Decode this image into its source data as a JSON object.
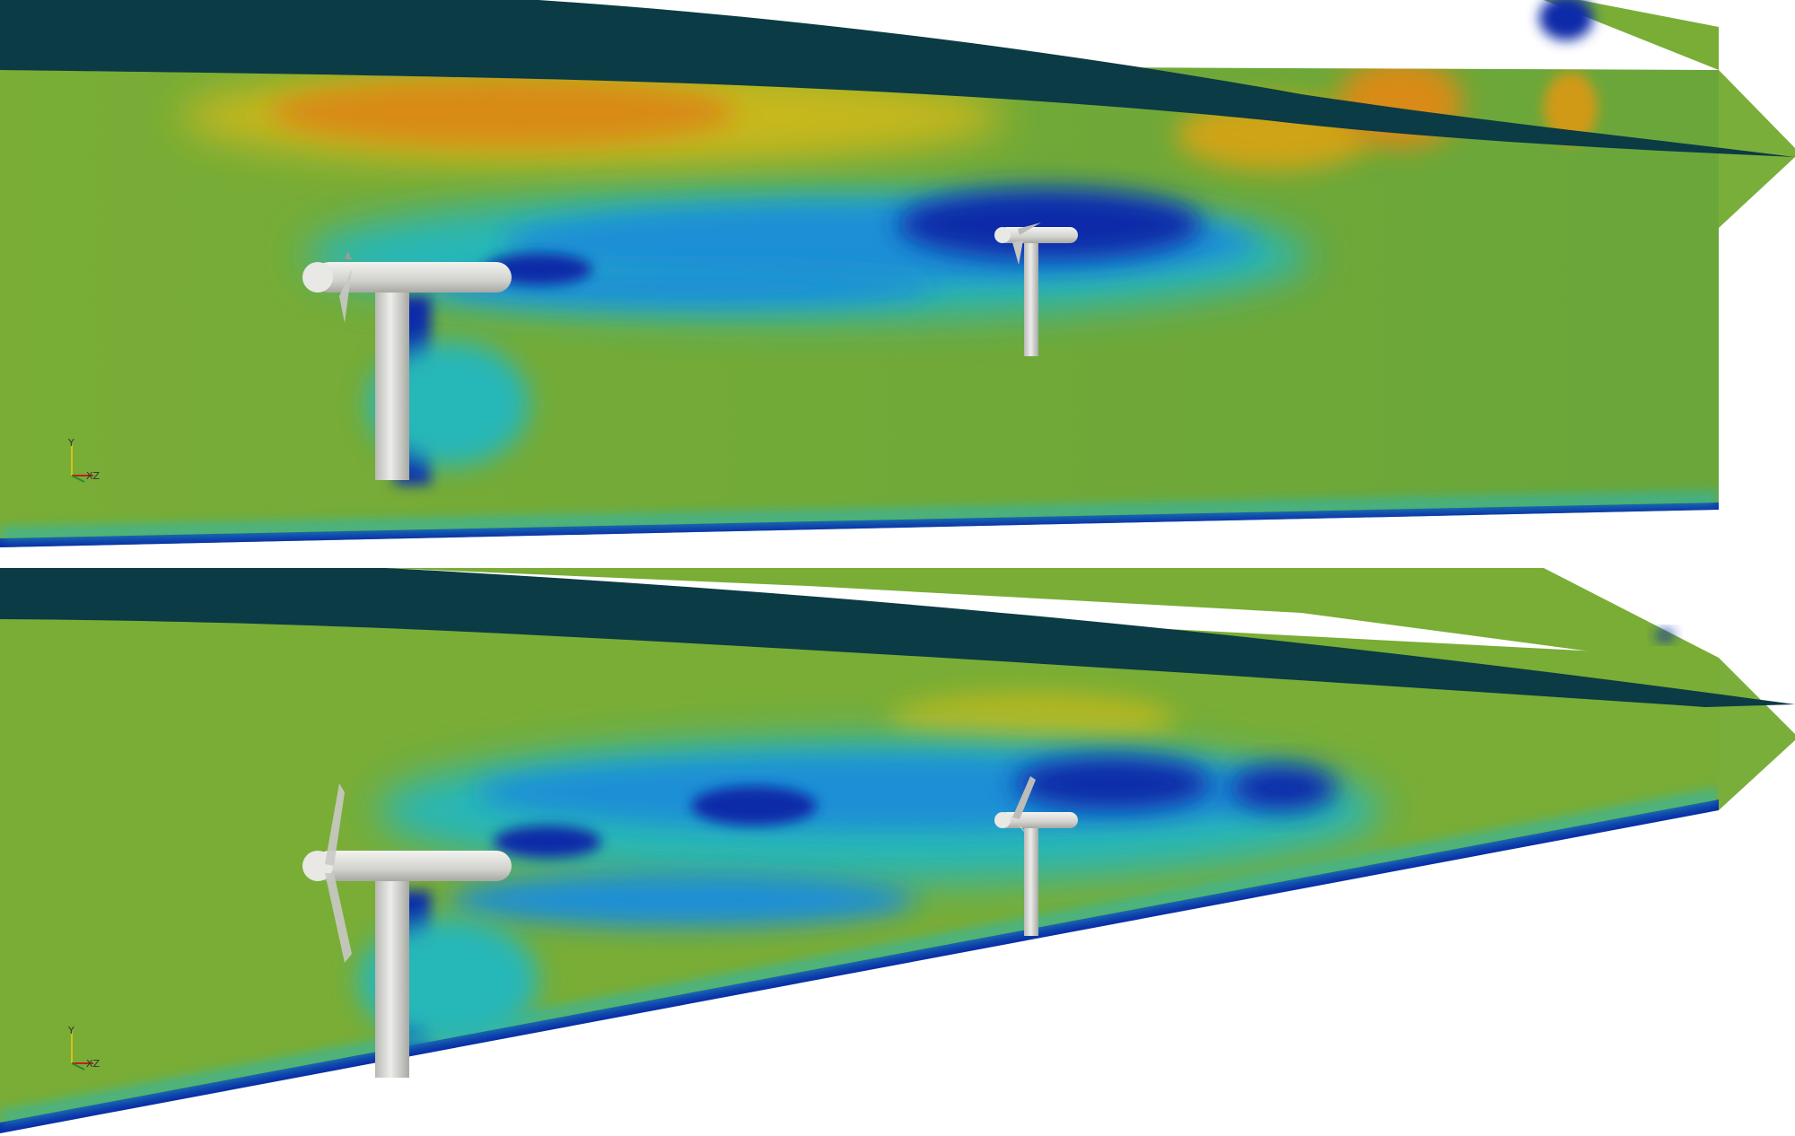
{
  "panels": [
    {
      "id": "top",
      "axes_triad": {
        "y": "Y",
        "xz": "XZ"
      }
    },
    {
      "id": "bottom",
      "axes_triad": {
        "y": "Y",
        "xz": "XZ"
      }
    }
  ],
  "colors": {
    "background": "#ffffff",
    "field_base": "#79ad36",
    "free_surface": "#0b3b44",
    "deficit_deep": "#0a2aa8",
    "deficit_mid": "#1f8fd6",
    "deficit_light": "#27b7b8",
    "speedup": "#d88b13",
    "speedup_strong": "#c55e0c",
    "turbine": "#d3d3cf",
    "triad_y": "#d4c21d",
    "triad_x": "#c02020",
    "triad_z": "#2a8a2a"
  }
}
